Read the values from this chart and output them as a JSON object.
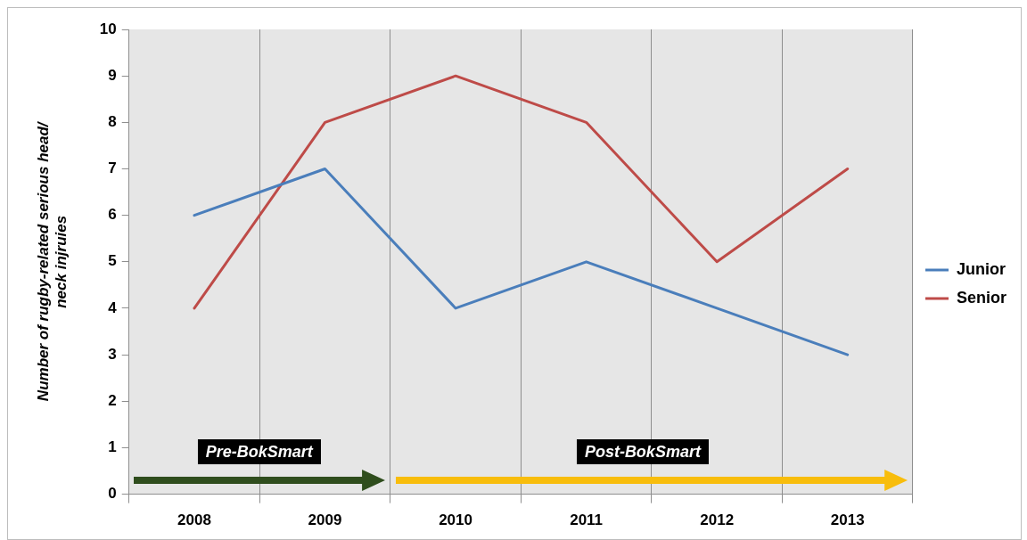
{
  "chart_data": {
    "type": "line",
    "ylabel": "Number of rugby-related serious head/\nneck injruies",
    "categories": [
      "2008",
      "2009",
      "2010",
      "2011",
      "2012",
      "2013"
    ],
    "series": [
      {
        "name": "Junior",
        "color": "#4a7ebb",
        "values": [
          6,
          7,
          4,
          5,
          4,
          3
        ]
      },
      {
        "name": "Senior",
        "color": "#be4b48",
        "values": [
          4,
          8,
          9,
          8,
          5,
          7
        ]
      }
    ],
    "ylim": [
      0,
      10
    ],
    "yticks": [
      0,
      1,
      2,
      3,
      4,
      5,
      6,
      7,
      8,
      9,
      10
    ],
    "grid": "x",
    "legend": "right",
    "marker": "none",
    "annotations": [
      "Pre-BokSmart",
      "Post-BokSmart"
    ]
  }
}
